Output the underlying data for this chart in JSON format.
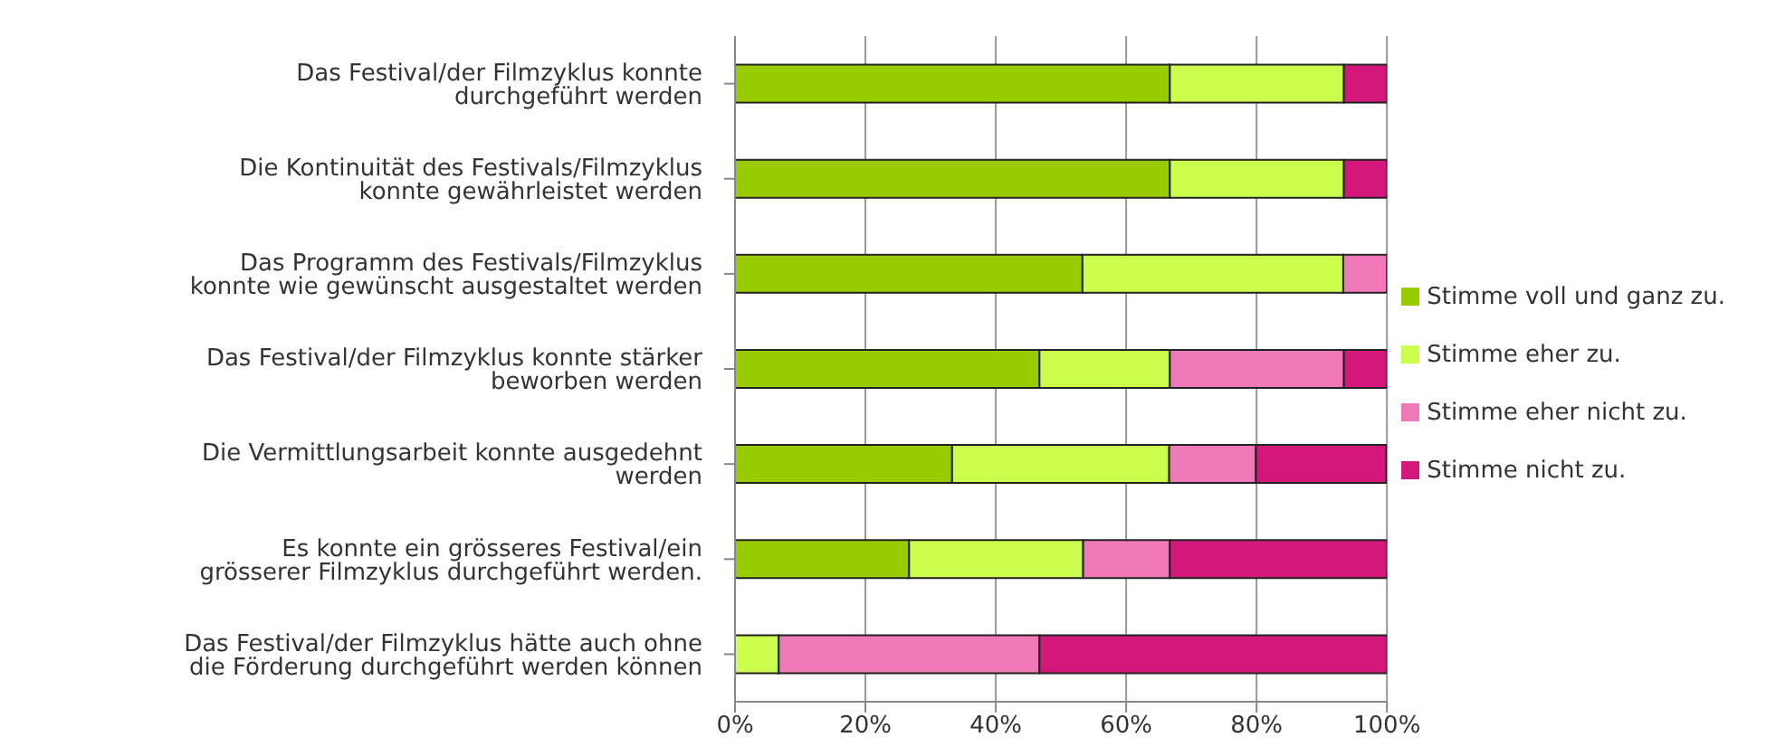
{
  "chart_data": {
    "type": "bar",
    "orientation": "horizontal",
    "stacked": true,
    "categories": [
      "Das Festival/der Filmzyklus konnte durchgeführt werden",
      "Die Kontinuität des Festivals/Filmzyklus konnte gewährleistet werden",
      "Das Programm des Festivals/Filmzyklus konnte wie gewünscht ausgestaltet werden",
      "Das Festival/der Filmzyklus konnte stärker beworben werden",
      "Die Vermittlungsarbeit konnte ausgedehnt werden",
      "Es konnte ein grösseres Festival/ein grösserer Filmzyklus durchgeführt werden.",
      "Das Festival/der Filmzyklus hätte auch ohne die Förderung durchgeführt werden können"
    ],
    "series": [
      {
        "name": "Stimme voll und ganz zu.",
        "color": "#99cc00",
        "values": [
          66.7,
          66.7,
          53.3,
          46.7,
          33.3,
          26.7,
          0
        ]
      },
      {
        "name": "Stimme eher zu.",
        "color": "#ccff4d",
        "values": [
          26.7,
          26.7,
          40,
          20,
          33.3,
          26.7,
          6.7
        ]
      },
      {
        "name": "Stimme eher nicht zu.",
        "color": "#f077b8",
        "values": [
          0,
          0,
          6.7,
          26.7,
          13.3,
          13.3,
          40
        ]
      },
      {
        "name": "Stimme nicht zu.",
        "color": "#d4177a",
        "values": [
          6.7,
          6.7,
          0,
          6.7,
          20,
          33.3,
          53.3
        ]
      }
    ],
    "xlim": [
      0,
      100
    ],
    "xticks": [
      {
        "value": 0,
        "label": "0%"
      },
      {
        "value": 20,
        "label": "20%"
      },
      {
        "value": 40,
        "label": "40%"
      },
      {
        "value": 60,
        "label": "60%"
      },
      {
        "value": 80,
        "label": "80%"
      },
      {
        "value": 100,
        "label": "100%"
      }
    ],
    "grid": "x",
    "legend": "right"
  }
}
